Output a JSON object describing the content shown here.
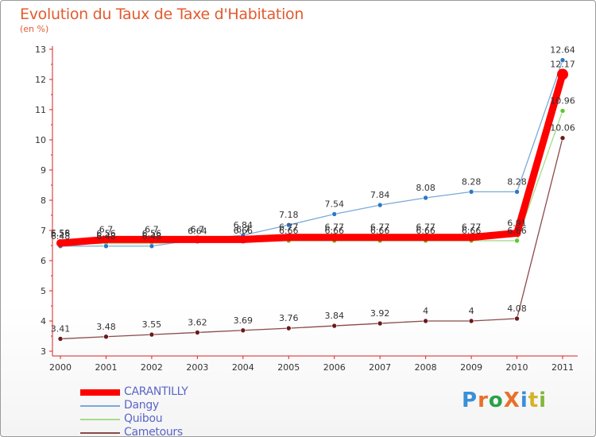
{
  "title": "Evolution du Taux de Taxe d'Habitation",
  "unit": "(en %)",
  "logo": {
    "text": "ProXiti",
    "letters": [
      {
        "c": "P",
        "color": "#3a8fd8"
      },
      {
        "c": "r",
        "color": "#e8702a"
      },
      {
        "c": "o",
        "color": "#2aa14a"
      },
      {
        "c": "X",
        "color": "#e8702a"
      },
      {
        "c": "i",
        "color": "#3a8fd8"
      },
      {
        "c": "t",
        "color": "#d4b32a"
      },
      {
        "c": "i",
        "color": "#7fb83a"
      }
    ]
  },
  "chart_data": {
    "type": "line",
    "x": [
      "2000",
      "2001",
      "2002",
      "2003",
      "2004",
      "2005",
      "2006",
      "2007",
      "2008",
      "2009",
      "2010",
      "2011"
    ],
    "ylim": [
      3,
      13
    ],
    "yticks": [
      "3",
      "4",
      "5",
      "6",
      "7",
      "8",
      "9",
      "10",
      "11",
      "12",
      "13"
    ],
    "grid": false,
    "legend_position": "bottom-left",
    "series": [
      {
        "name": "CARANTILLY",
        "color": "#ff0000",
        "point_color": "#ff0000",
        "values": [
          6.58,
          6.7,
          6.7,
          6.7,
          6.7,
          6.77,
          6.77,
          6.77,
          6.77,
          6.77,
          6.91,
          12.17
        ],
        "labels": [
          "6.58",
          "6.7",
          "6.7",
          "6.7",
          "6.7",
          "6.77",
          "6.77",
          "6.77",
          "6.77",
          "6.77",
          "6.91",
          "12.17"
        ]
      },
      {
        "name": "Dangy",
        "color": "#7aaad8",
        "point_color": "#2b78c8",
        "values": [
          6.48,
          6.48,
          6.48,
          6.7,
          6.84,
          7.18,
          7.54,
          7.84,
          8.08,
          8.28,
          8.28,
          12.64
        ],
        "labels": [
          "6.48",
          "6.48",
          "6.48",
          "6.7",
          "6.84",
          "7.18",
          "7.54",
          "7.84",
          "8.08",
          "8.28",
          "8.28",
          "12.64"
        ]
      },
      {
        "name": "Quibou",
        "color": "#a4dc8c",
        "point_color": "#5cc82a",
        "values": [
          6.56,
          6.56,
          6.56,
          6.64,
          6.66,
          6.66,
          6.66,
          6.66,
          6.66,
          6.66,
          6.66,
          10.96
        ],
        "labels": [
          "6.56",
          "6.56",
          "6.56",
          "6.64",
          "6.66",
          "6.66",
          "6.66",
          "6.66",
          "6.66",
          "6.66",
          "6.66",
          "10.96"
        ]
      },
      {
        "name": "Cametours",
        "color": "#8a4a4a",
        "point_color": "#6a1a1a",
        "values": [
          3.41,
          3.48,
          3.55,
          3.62,
          3.69,
          3.76,
          3.84,
          3.92,
          4,
          4,
          4.08,
          10.06
        ],
        "labels": [
          "3.41",
          "3.48",
          "3.55",
          "3.62",
          "3.69",
          "3.76",
          "3.84",
          "3.92",
          "4",
          "4",
          "4.08",
          "10.06"
        ]
      }
    ]
  }
}
